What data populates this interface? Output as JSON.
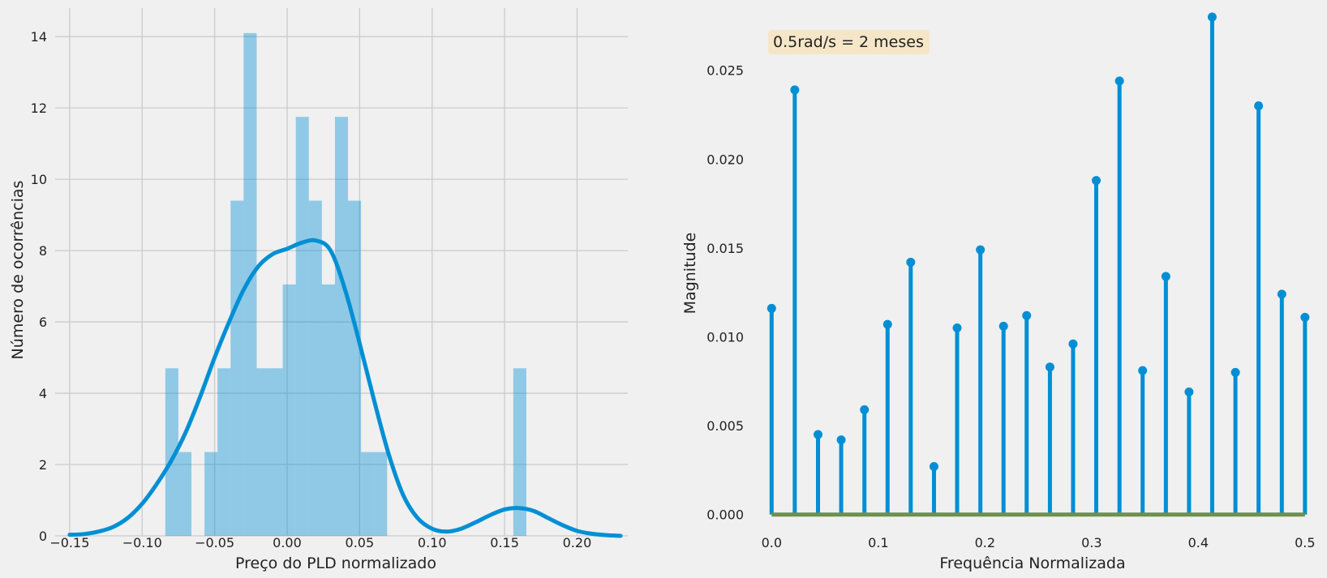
{
  "chart_data": [
    {
      "type": "bar",
      "subtype": "histogram-with-kde",
      "xlabel": "Preço do PLD normalizado",
      "ylabel": "Número de ocorrências",
      "xlim": [
        -0.16,
        0.235
      ],
      "ylim": [
        0,
        14.8
      ],
      "xticks": [
        -0.15,
        -0.1,
        -0.05,
        0.0,
        0.05,
        0.1,
        0.15,
        0.2
      ],
      "xtick_labels": [
        "−0.15",
        "−0.10",
        "−0.05",
        "0.00",
        "0.05",
        "0.10",
        "0.15",
        "0.20"
      ],
      "yticks": [
        0,
        2,
        4,
        6,
        8,
        10,
        12,
        14
      ],
      "ytick_labels": [
        "0",
        "2",
        "4",
        "6",
        "8",
        "10",
        "12",
        "14"
      ],
      "grid": true,
      "bar_color": "#008fd5",
      "line_color": "#008fd5",
      "bins": [
        {
          "x0": -0.084,
          "x1": -0.075,
          "value": 4.7
        },
        {
          "x0": -0.075,
          "x1": -0.066,
          "value": 2.35
        },
        {
          "x0": -0.057,
          "x1": -0.048,
          "value": 2.35
        },
        {
          "x0": -0.048,
          "x1": -0.039,
          "value": 4.7
        },
        {
          "x0": -0.039,
          "x1": -0.03,
          "value": 9.4
        },
        {
          "x0": -0.03,
          "x1": -0.021,
          "value": 14.1
        },
        {
          "x0": -0.021,
          "x1": -0.012,
          "value": 4.7
        },
        {
          "x0": -0.012,
          "x1": -0.003,
          "value": 4.7
        },
        {
          "x0": -0.003,
          "x1": 0.006,
          "value": 7.05
        },
        {
          "x0": 0.006,
          "x1": 0.015,
          "value": 11.75
        },
        {
          "x0": 0.015,
          "x1": 0.024,
          "value": 9.4
        },
        {
          "x0": 0.024,
          "x1": 0.033,
          "value": 7.05
        },
        {
          "x0": 0.033,
          "x1": 0.042,
          "value": 11.75
        },
        {
          "x0": 0.042,
          "x1": 0.051,
          "value": 9.4
        },
        {
          "x0": 0.051,
          "x1": 0.06,
          "value": 2.35
        },
        {
          "x0": 0.06,
          "x1": 0.069,
          "value": 2.35
        },
        {
          "x0": 0.156,
          "x1": 0.165,
          "value": 4.7
        }
      ],
      "kde": {
        "x": [
          -0.15,
          -0.14,
          -0.13,
          -0.12,
          -0.11,
          -0.1,
          -0.09,
          -0.08,
          -0.07,
          -0.06,
          -0.05,
          -0.04,
          -0.03,
          -0.02,
          -0.01,
          0.0,
          0.01,
          0.02,
          0.03,
          0.04,
          0.05,
          0.06,
          0.07,
          0.08,
          0.09,
          0.1,
          0.11,
          0.12,
          0.13,
          0.14,
          0.15,
          0.16,
          0.17,
          0.18,
          0.19,
          0.2,
          0.21,
          0.22,
          0.23
        ],
        "y": [
          0.03,
          0.05,
          0.12,
          0.25,
          0.5,
          0.9,
          1.45,
          2.1,
          2.9,
          3.9,
          5.0,
          6.0,
          6.9,
          7.55,
          7.9,
          8.05,
          8.22,
          8.28,
          8.0,
          6.9,
          5.4,
          3.8,
          2.3,
          1.15,
          0.5,
          0.2,
          0.12,
          0.2,
          0.38,
          0.58,
          0.74,
          0.78,
          0.7,
          0.5,
          0.3,
          0.14,
          0.06,
          0.02,
          0.0
        ]
      }
    },
    {
      "type": "stem",
      "xlabel": "Frequência Normalizada",
      "ylabel": "Magnitude",
      "xlim": [
        -0.02,
        0.51
      ],
      "ylim": [
        -0.0012,
        0.0285
      ],
      "xticks": [
        0.0,
        0.1,
        0.2,
        0.3,
        0.4,
        0.5
      ],
      "xtick_labels": [
        "0.0",
        "0.1",
        "0.2",
        "0.3",
        "0.4",
        "0.5"
      ],
      "yticks": [
        0.0,
        0.005,
        0.01,
        0.015,
        0.02,
        0.025
      ],
      "ytick_labels": [
        "0.000",
        "0.005",
        "0.010",
        "0.015",
        "0.020",
        "0.025"
      ],
      "grid": false,
      "stem_color": "#008fd5",
      "baseline_color": "#6d904f",
      "annotation": {
        "text": "0.5rad/s = 2 meses",
        "bgcolor": "#f5e6c8"
      },
      "x": [
        0.0,
        0.0217,
        0.0435,
        0.0652,
        0.087,
        0.1087,
        0.1304,
        0.1522,
        0.1739,
        0.1957,
        0.2174,
        0.2391,
        0.2609,
        0.2826,
        0.3043,
        0.3261,
        0.3478,
        0.3696,
        0.3913,
        0.413,
        0.4348,
        0.4565,
        0.4783,
        0.5
      ],
      "values": [
        0.0116,
        0.0239,
        0.0045,
        0.0042,
        0.0059,
        0.0107,
        0.0142,
        0.0027,
        0.0105,
        0.0149,
        0.0106,
        0.0112,
        0.0083,
        0.0096,
        0.0188,
        0.0244,
        0.0081,
        0.0134,
        0.0069,
        0.028,
        0.008,
        0.023,
        0.0124,
        0.0111
      ]
    }
  ]
}
